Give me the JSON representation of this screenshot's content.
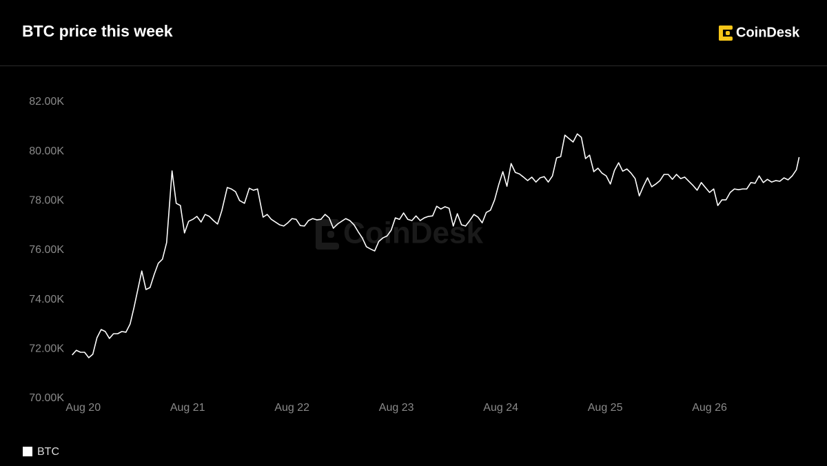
{
  "logo": "CoinDesk",
  "watermark": "CoinDesk",
  "chart_data": {
    "type": "line",
    "title": "BTC price this week",
    "x": [
      19.894,
      19.934,
      19.974,
      20.013,
      20.053,
      20.092,
      20.132,
      20.172,
      20.211,
      20.251,
      20.29,
      20.33,
      20.37,
      20.409,
      20.449,
      20.488,
      20.561,
      20.601,
      20.64,
      20.68,
      20.719,
      20.759,
      20.799,
      20.851,
      20.891,
      20.931,
      20.97,
      21.01,
      21.05,
      21.089,
      21.129,
      21.168,
      21.208,
      21.248,
      21.287,
      21.327,
      21.38,
      21.419,
      21.459,
      21.498,
      21.545,
      21.591,
      21.63,
      21.67,
      21.723,
      21.762,
      21.802,
      21.842,
      21.881,
      21.921,
      21.96,
      22.0,
      22.04,
      22.079,
      22.119,
      22.158,
      22.198,
      22.238,
      22.277,
      22.317,
      22.356,
      22.396,
      22.436,
      22.475,
      22.515,
      22.554,
      22.594,
      22.634,
      22.673,
      22.713,
      22.752,
      22.792,
      22.832,
      22.871,
      22.911,
      22.95,
      22.99,
      23.03,
      23.069,
      23.109,
      23.149,
      23.188,
      23.228,
      23.267,
      23.307,
      23.347,
      23.386,
      23.426,
      23.465,
      23.505,
      23.545,
      23.584,
      23.624,
      23.663,
      23.703,
      23.743,
      23.782,
      23.822,
      23.861,
      23.901,
      23.941,
      23.98,
      24.02,
      24.059,
      24.099,
      24.139,
      24.178,
      24.218,
      24.257,
      24.297,
      24.337,
      24.376,
      24.416,
      24.455,
      24.495,
      24.535,
      24.574,
      24.614,
      24.653,
      24.693,
      24.733,
      24.772,
      24.812,
      24.851,
      24.891,
      24.931,
      24.97,
      25.01,
      25.05,
      25.089,
      25.129,
      25.168,
      25.208,
      25.248,
      25.287,
      25.327,
      25.366,
      25.406,
      25.446,
      25.485,
      25.525,
      25.564,
      25.604,
      25.644,
      25.683,
      25.723,
      25.762,
      25.802,
      25.842,
      25.881,
      25.921,
      25.96,
      26.0,
      26.04,
      26.079,
      26.119,
      26.158,
      26.198,
      26.238,
      26.277,
      26.317,
      26.356,
      26.396,
      26.436,
      26.475,
      26.515,
      26.554,
      26.594,
      26.634,
      26.673,
      26.713,
      26.752,
      26.792,
      26.832,
      26.858
    ],
    "series": [
      {
        "name": "BTC",
        "color": "#ffffff",
        "values": [
          71760,
          71950,
          71870,
          71870,
          71650,
          71790,
          72460,
          72790,
          72710,
          72430,
          72620,
          72620,
          72710,
          72680,
          73010,
          73710,
          75160,
          74410,
          74490,
          75020,
          75470,
          75640,
          76310,
          79210,
          77900,
          77810,
          76700,
          77170,
          77250,
          77370,
          77140,
          77450,
          77370,
          77200,
          77060,
          77590,
          78540,
          78480,
          78370,
          78010,
          77900,
          78510,
          78430,
          78480,
          77340,
          77450,
          77250,
          77140,
          77030,
          76980,
          77110,
          77280,
          77250,
          77000,
          76980,
          77200,
          77280,
          77230,
          77250,
          77450,
          77310,
          76890,
          77060,
          77170,
          77280,
          77200,
          77030,
          76750,
          76500,
          76140,
          76050,
          75970,
          76360,
          76500,
          76580,
          76810,
          77310,
          77250,
          77510,
          77250,
          77200,
          77390,
          77200,
          77310,
          77370,
          77390,
          77780,
          77670,
          77760,
          77700,
          76980,
          77480,
          77030,
          76980,
          77200,
          77450,
          77340,
          77110,
          77530,
          77620,
          78040,
          78650,
          79180,
          78590,
          79510,
          79150,
          79090,
          78960,
          78820,
          78960,
          78760,
          78930,
          78980,
          78760,
          79010,
          79740,
          79790,
          80660,
          80520,
          80380,
          80710,
          80570,
          79710,
          79850,
          79180,
          79320,
          79120,
          79010,
          78680,
          79230,
          79540,
          79200,
          79290,
          79120,
          78900,
          78200,
          78590,
          78930,
          78570,
          78680,
          78820,
          79070,
          79070,
          78870,
          79070,
          78900,
          78960,
          78790,
          78620,
          78430,
          78740,
          78540,
          78340,
          78480,
          77810,
          78040,
          78040,
          78340,
          78480,
          78450,
          78480,
          78480,
          78740,
          78710,
          79010,
          78740,
          78870,
          78760,
          78820,
          78790,
          78930,
          78850,
          79010,
          79260,
          79770
        ]
      }
    ],
    "xlim": [
      19.83,
      26.96
    ],
    "xticks": [
      {
        "value": 20,
        "label": "Aug 20"
      },
      {
        "value": 21,
        "label": "Aug 21"
      },
      {
        "value": 22,
        "label": "Aug 22"
      },
      {
        "value": 23,
        "label": "Aug 23"
      },
      {
        "value": 24,
        "label": "Aug 24"
      },
      {
        "value": 25,
        "label": "Aug 25"
      },
      {
        "value": 26,
        "label": "Aug 26"
      }
    ],
    "ylim": [
      70000,
      82000
    ],
    "yticks": [
      {
        "value": 70000,
        "label": "70.00K"
      },
      {
        "value": 72000,
        "label": "72.00K"
      },
      {
        "value": 74000,
        "label": "74.00K"
      },
      {
        "value": 76000,
        "label": "76.00K"
      },
      {
        "value": 78000,
        "label": "78.00K"
      },
      {
        "value": 80000,
        "label": "80.00K"
      },
      {
        "value": 82000,
        "label": "82.00K"
      }
    ],
    "legend": "bottom-left"
  }
}
